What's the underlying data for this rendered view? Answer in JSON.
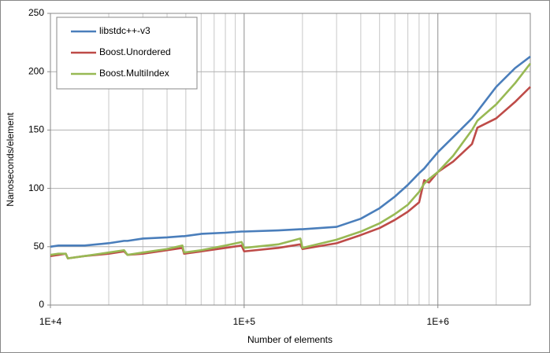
{
  "chart_data": {
    "type": "line",
    "xlabel": "Number of elements",
    "ylabel": "Nanoseconds/element",
    "xscale": "log",
    "grid": true,
    "legend": "upper left",
    "x": [
      10000,
      11000,
      12000,
      12300,
      15000,
      20000,
      24000,
      25000,
      30000,
      40000,
      48000,
      49000,
      60000,
      80000,
      97000,
      100000,
      150000,
      195000,
      200000,
      300000,
      400000,
      500000,
      600000,
      700000,
      800000,
      850000,
      900000,
      1000000,
      1200000,
      1500000,
      1600000,
      2000000,
      2500000,
      3000000
    ],
    "series": [
      {
        "name": "libstdc++-v3",
        "color": "#4a7ebb",
        "values": [
          50,
          51,
          51,
          51,
          51,
          53,
          55,
          55,
          57,
          58,
          59,
          59,
          61,
          62,
          63,
          63,
          64,
          65,
          65,
          67,
          74,
          83,
          93,
          103,
          113,
          117,
          122,
          131,
          144,
          160,
          166,
          187,
          203,
          213
        ]
      },
      {
        "name": "Boost.Unordered",
        "color": "#be4b48",
        "values": [
          42,
          43,
          44,
          40,
          42,
          44,
          46,
          43,
          44,
          47,
          49,
          44,
          46,
          49,
          51,
          46,
          49,
          52,
          48,
          53,
          60,
          66,
          73,
          80,
          88,
          107,
          105,
          114,
          123,
          138,
          152,
          160,
          174,
          187
        ]
      },
      {
        "name": "Boost.MultiIndex",
        "color": "#98b954",
        "values": [
          43,
          44,
          44,
          40,
          42,
          45,
          47,
          43,
          45,
          48,
          51,
          45,
          47,
          51,
          54,
          49,
          52,
          57,
          49,
          56,
          63,
          70,
          78,
          86,
          97,
          104,
          108,
          114,
          128,
          150,
          158,
          172,
          190,
          207
        ]
      }
    ],
    "xlim": [
      10000,
      3000000
    ],
    "xticks": [
      {
        "value": 10000,
        "label": "1E+4"
      },
      {
        "value": 100000,
        "label": "1E+5"
      },
      {
        "value": 1000000,
        "label": "1E+6"
      }
    ],
    "xminorticks": [
      20000,
      30000,
      40000,
      50000,
      60000,
      70000,
      80000,
      90000,
      200000,
      300000,
      400000,
      500000,
      600000,
      700000,
      800000,
      900000,
      2000000
    ],
    "ylim": [
      0,
      250
    ],
    "yticks": [
      0,
      50,
      100,
      150,
      200,
      250
    ]
  }
}
